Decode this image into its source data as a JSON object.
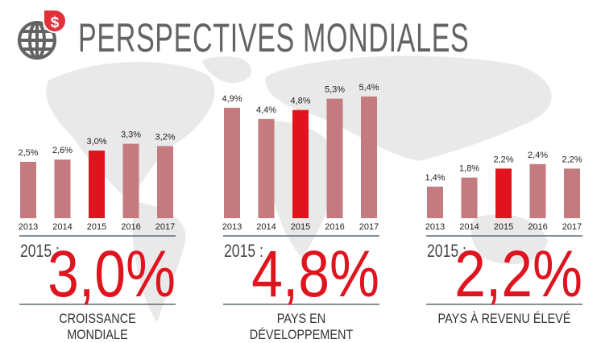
{
  "header": {
    "title": "PERSPECTIVES MONDIALES",
    "icon": "globe-dollar-icon"
  },
  "colors": {
    "bar": "#c47b80",
    "highlight": "#e0141e",
    "rule": "#5f6b75",
    "map": "#e9e9e9"
  },
  "chart_data": [
    {
      "type": "bar",
      "categories": [
        "2013",
        "2014",
        "2015",
        "2016",
        "2017"
      ],
      "values": [
        2.5,
        2.6,
        3.0,
        3.3,
        3.2
      ],
      "labels": [
        "2,5%",
        "2,6%",
        "3,0%",
        "3,3%",
        "3,2%"
      ],
      "highlight": "2015",
      "summary_year": "2015 :",
      "summary_value": "3,0%",
      "caption": "CROISSANCE MONDIALE"
    },
    {
      "type": "bar",
      "categories": [
        "2013",
        "2014",
        "2015",
        "2016",
        "2017"
      ],
      "values": [
        4.9,
        4.4,
        4.8,
        5.3,
        5.4
      ],
      "labels": [
        "4,9%",
        "4,4%",
        "4,8%",
        "5,3%",
        "5,4%"
      ],
      "highlight": "2015",
      "summary_year": "2015 :",
      "summary_value": "4,8%",
      "caption": "PAYS EN DÉVELOPPEMENT"
    },
    {
      "type": "bar",
      "categories": [
        "2013",
        "2014",
        "2015",
        "2016",
        "2017"
      ],
      "values": [
        1.4,
        1.8,
        2.2,
        2.4,
        2.2
      ],
      "labels": [
        "1,4%",
        "1,8%",
        "2,2%",
        "2,4%",
        "2,2%"
      ],
      "highlight": "2015",
      "summary_year": "2015 :",
      "summary_value": "2,2%",
      "caption": "PAYS À REVENU ÉLEVÉ"
    }
  ]
}
